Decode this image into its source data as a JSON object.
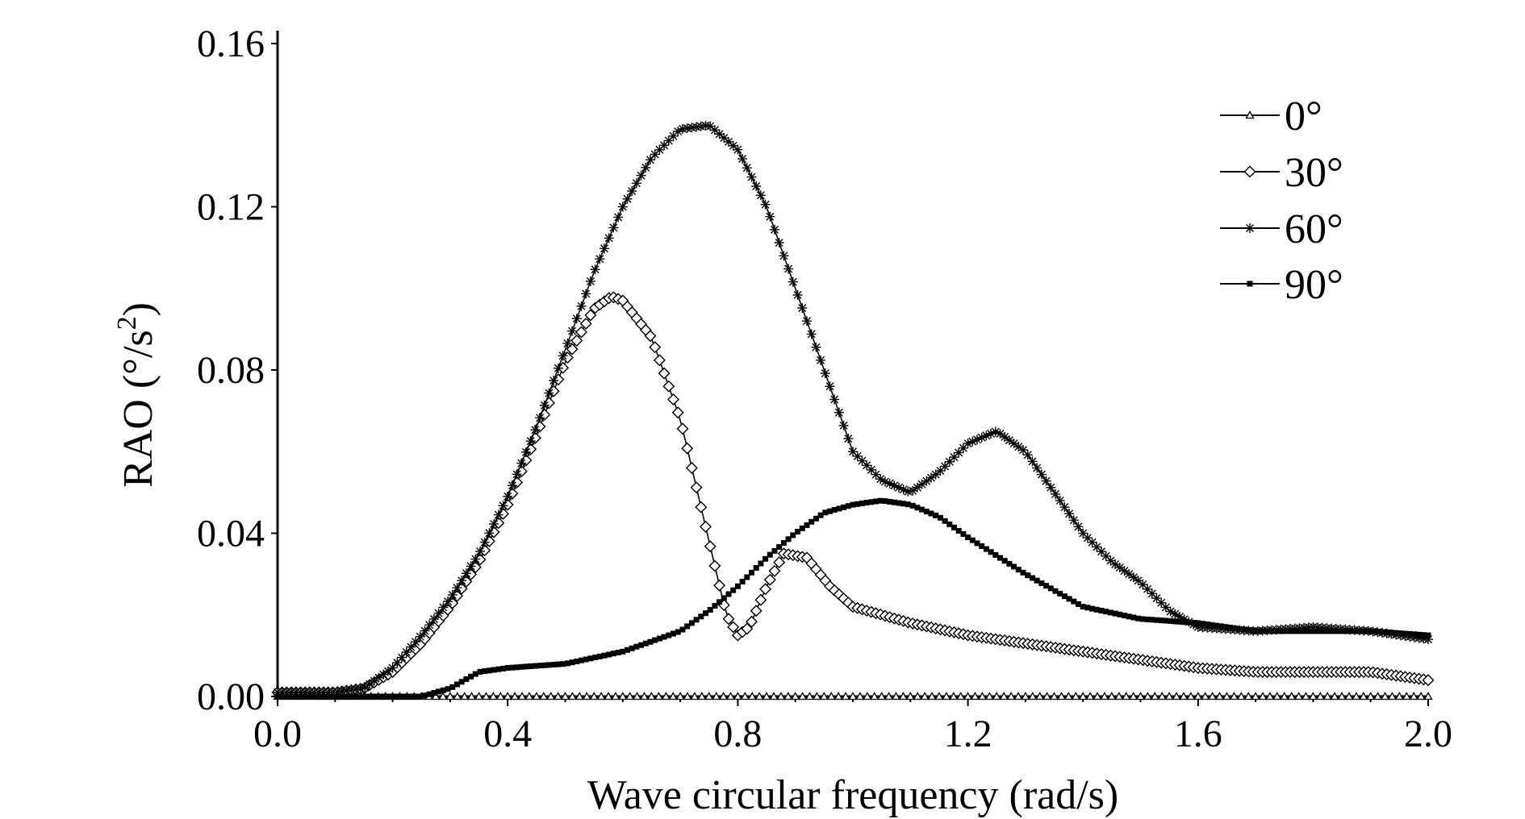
{
  "chart_data": {
    "type": "line",
    "title": "",
    "xlabel": "Wave circular frequency (rad/s)",
    "ylabel_main": "RAO (°/s",
    "ylabel_sup": "2",
    "ylabel_tail": ")",
    "xlim": [
      0.0,
      2.0
    ],
    "ylim": [
      0.0,
      0.16
    ],
    "xticks": [
      "0.0",
      "0.4",
      "0.8",
      "1.2",
      "1.6",
      "2.0"
    ],
    "yticks": [
      "0.00",
      "0.04",
      "0.08",
      "0.12",
      "0.16"
    ],
    "grid": false,
    "legend_position": "top-right",
    "series": [
      {
        "name": "0°",
        "marker": "triangle",
        "x": [
          0.0,
          0.2,
          0.4,
          0.6,
          0.8,
          1.0,
          1.2,
          1.4,
          1.6,
          1.8,
          2.0
        ],
        "y": [
          0.0,
          0.0,
          0.0,
          0.0,
          0.0,
          0.0,
          0.0,
          0.0,
          0.0,
          0.0,
          0.0
        ]
      },
      {
        "name": "30°",
        "marker": "diamond",
        "x": [
          0.0,
          0.05,
          0.1,
          0.15,
          0.2,
          0.25,
          0.3,
          0.35,
          0.4,
          0.45,
          0.5,
          0.55,
          0.58,
          0.6,
          0.65,
          0.7,
          0.75,
          0.78,
          0.8,
          0.82,
          0.85,
          0.88,
          0.92,
          0.96,
          1.0,
          1.05,
          1.1,
          1.2,
          1.3,
          1.4,
          1.5,
          1.6,
          1.7,
          1.8,
          1.9,
          2.0
        ],
        "y": [
          0.001,
          0.001,
          0.001,
          0.002,
          0.006,
          0.013,
          0.022,
          0.033,
          0.047,
          0.064,
          0.082,
          0.095,
          0.098,
          0.097,
          0.088,
          0.068,
          0.038,
          0.02,
          0.015,
          0.017,
          0.027,
          0.035,
          0.034,
          0.027,
          0.022,
          0.02,
          0.018,
          0.015,
          0.013,
          0.011,
          0.009,
          0.007,
          0.006,
          0.006,
          0.006,
          0.004
        ]
      },
      {
        "name": "60°",
        "marker": "star",
        "x": [
          0.0,
          0.05,
          0.1,
          0.15,
          0.2,
          0.25,
          0.3,
          0.35,
          0.4,
          0.45,
          0.5,
          0.55,
          0.6,
          0.65,
          0.7,
          0.75,
          0.8,
          0.85,
          0.9,
          0.95,
          1.0,
          1.05,
          1.1,
          1.15,
          1.2,
          1.25,
          1.3,
          1.35,
          1.4,
          1.45,
          1.5,
          1.55,
          1.6,
          1.7,
          1.8,
          1.9,
          2.0
        ],
        "y": [
          0.001,
          0.001,
          0.001,
          0.002,
          0.007,
          0.015,
          0.024,
          0.035,
          0.049,
          0.066,
          0.085,
          0.104,
          0.12,
          0.132,
          0.139,
          0.14,
          0.134,
          0.12,
          0.1,
          0.08,
          0.06,
          0.053,
          0.05,
          0.055,
          0.062,
          0.065,
          0.06,
          0.05,
          0.04,
          0.033,
          0.028,
          0.021,
          0.017,
          0.016,
          0.017,
          0.016,
          0.014
        ]
      },
      {
        "name": "90°",
        "marker": "square",
        "x": [
          0.0,
          0.1,
          0.2,
          0.25,
          0.3,
          0.35,
          0.4,
          0.5,
          0.6,
          0.7,
          0.75,
          0.8,
          0.85,
          0.9,
          0.95,
          1.0,
          1.05,
          1.1,
          1.15,
          1.2,
          1.3,
          1.4,
          1.5,
          1.6,
          1.7,
          1.8,
          1.9,
          2.0
        ],
        "y": [
          0.0,
          0.0,
          0.0,
          0.0,
          0.002,
          0.006,
          0.007,
          0.008,
          0.011,
          0.016,
          0.021,
          0.027,
          0.034,
          0.04,
          0.045,
          0.047,
          0.048,
          0.047,
          0.044,
          0.039,
          0.03,
          0.022,
          0.019,
          0.018,
          0.016,
          0.016,
          0.016,
          0.015
        ]
      }
    ]
  }
}
